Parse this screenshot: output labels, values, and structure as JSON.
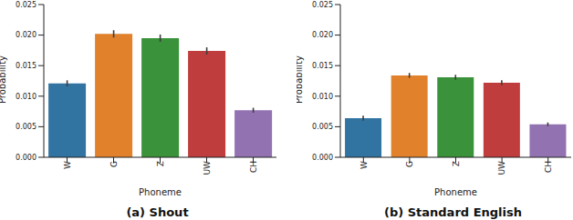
{
  "chart_data": [
    {
      "type": "bar",
      "title": "(a) Shout",
      "x_label": "Phoneme",
      "y_label": "Probability",
      "categories": [
        "W",
        "G",
        "Z",
        "UW",
        "CH"
      ],
      "values": [
        0.0121,
        0.0202,
        0.0195,
        0.0174,
        0.0077
      ],
      "errors": [
        0.0005,
        0.0006,
        0.0006,
        0.0006,
        0.0004
      ],
      "colors": [
        "#3274a1",
        "#e1812c",
        "#3a923a",
        "#c03d3e",
        "#9372b2"
      ],
      "ylim": [
        0,
        0.025
      ],
      "yticks": [
        {
          "value": 0,
          "label": "0.000"
        },
        {
          "value": 0.005,
          "label": "0.005"
        },
        {
          "value": 0.01,
          "label": "0.010"
        },
        {
          "value": 0.015,
          "label": "0.015"
        },
        {
          "value": 0.02,
          "label": "0.020"
        },
        {
          "value": 0.025,
          "label": "0.025"
        }
      ]
    },
    {
      "type": "bar",
      "title": "(b) Standard English",
      "x_label": "Phoneme",
      "y_label": "Probability",
      "categories": [
        "W",
        "G",
        "Z",
        "UW",
        "CH"
      ],
      "values": [
        0.0064,
        0.0134,
        0.0131,
        0.0122,
        0.0054
      ],
      "errors": [
        0.0004,
        0.0004,
        0.0004,
        0.0004,
        0.0003
      ],
      "colors": [
        "#3274a1",
        "#e1812c",
        "#3a923a",
        "#c03d3e",
        "#9372b2"
      ],
      "ylim": [
        0,
        0.025
      ],
      "yticks": [
        {
          "value": 0,
          "label": "0.000"
        },
        {
          "value": 0.005,
          "label": "0.005"
        },
        {
          "value": 0.01,
          "label": "0.010"
        },
        {
          "value": 0.015,
          "label": "0.015"
        },
        {
          "value": 0.02,
          "label": "0.020"
        },
        {
          "value": 0.025,
          "label": "0.025"
        }
      ]
    }
  ]
}
